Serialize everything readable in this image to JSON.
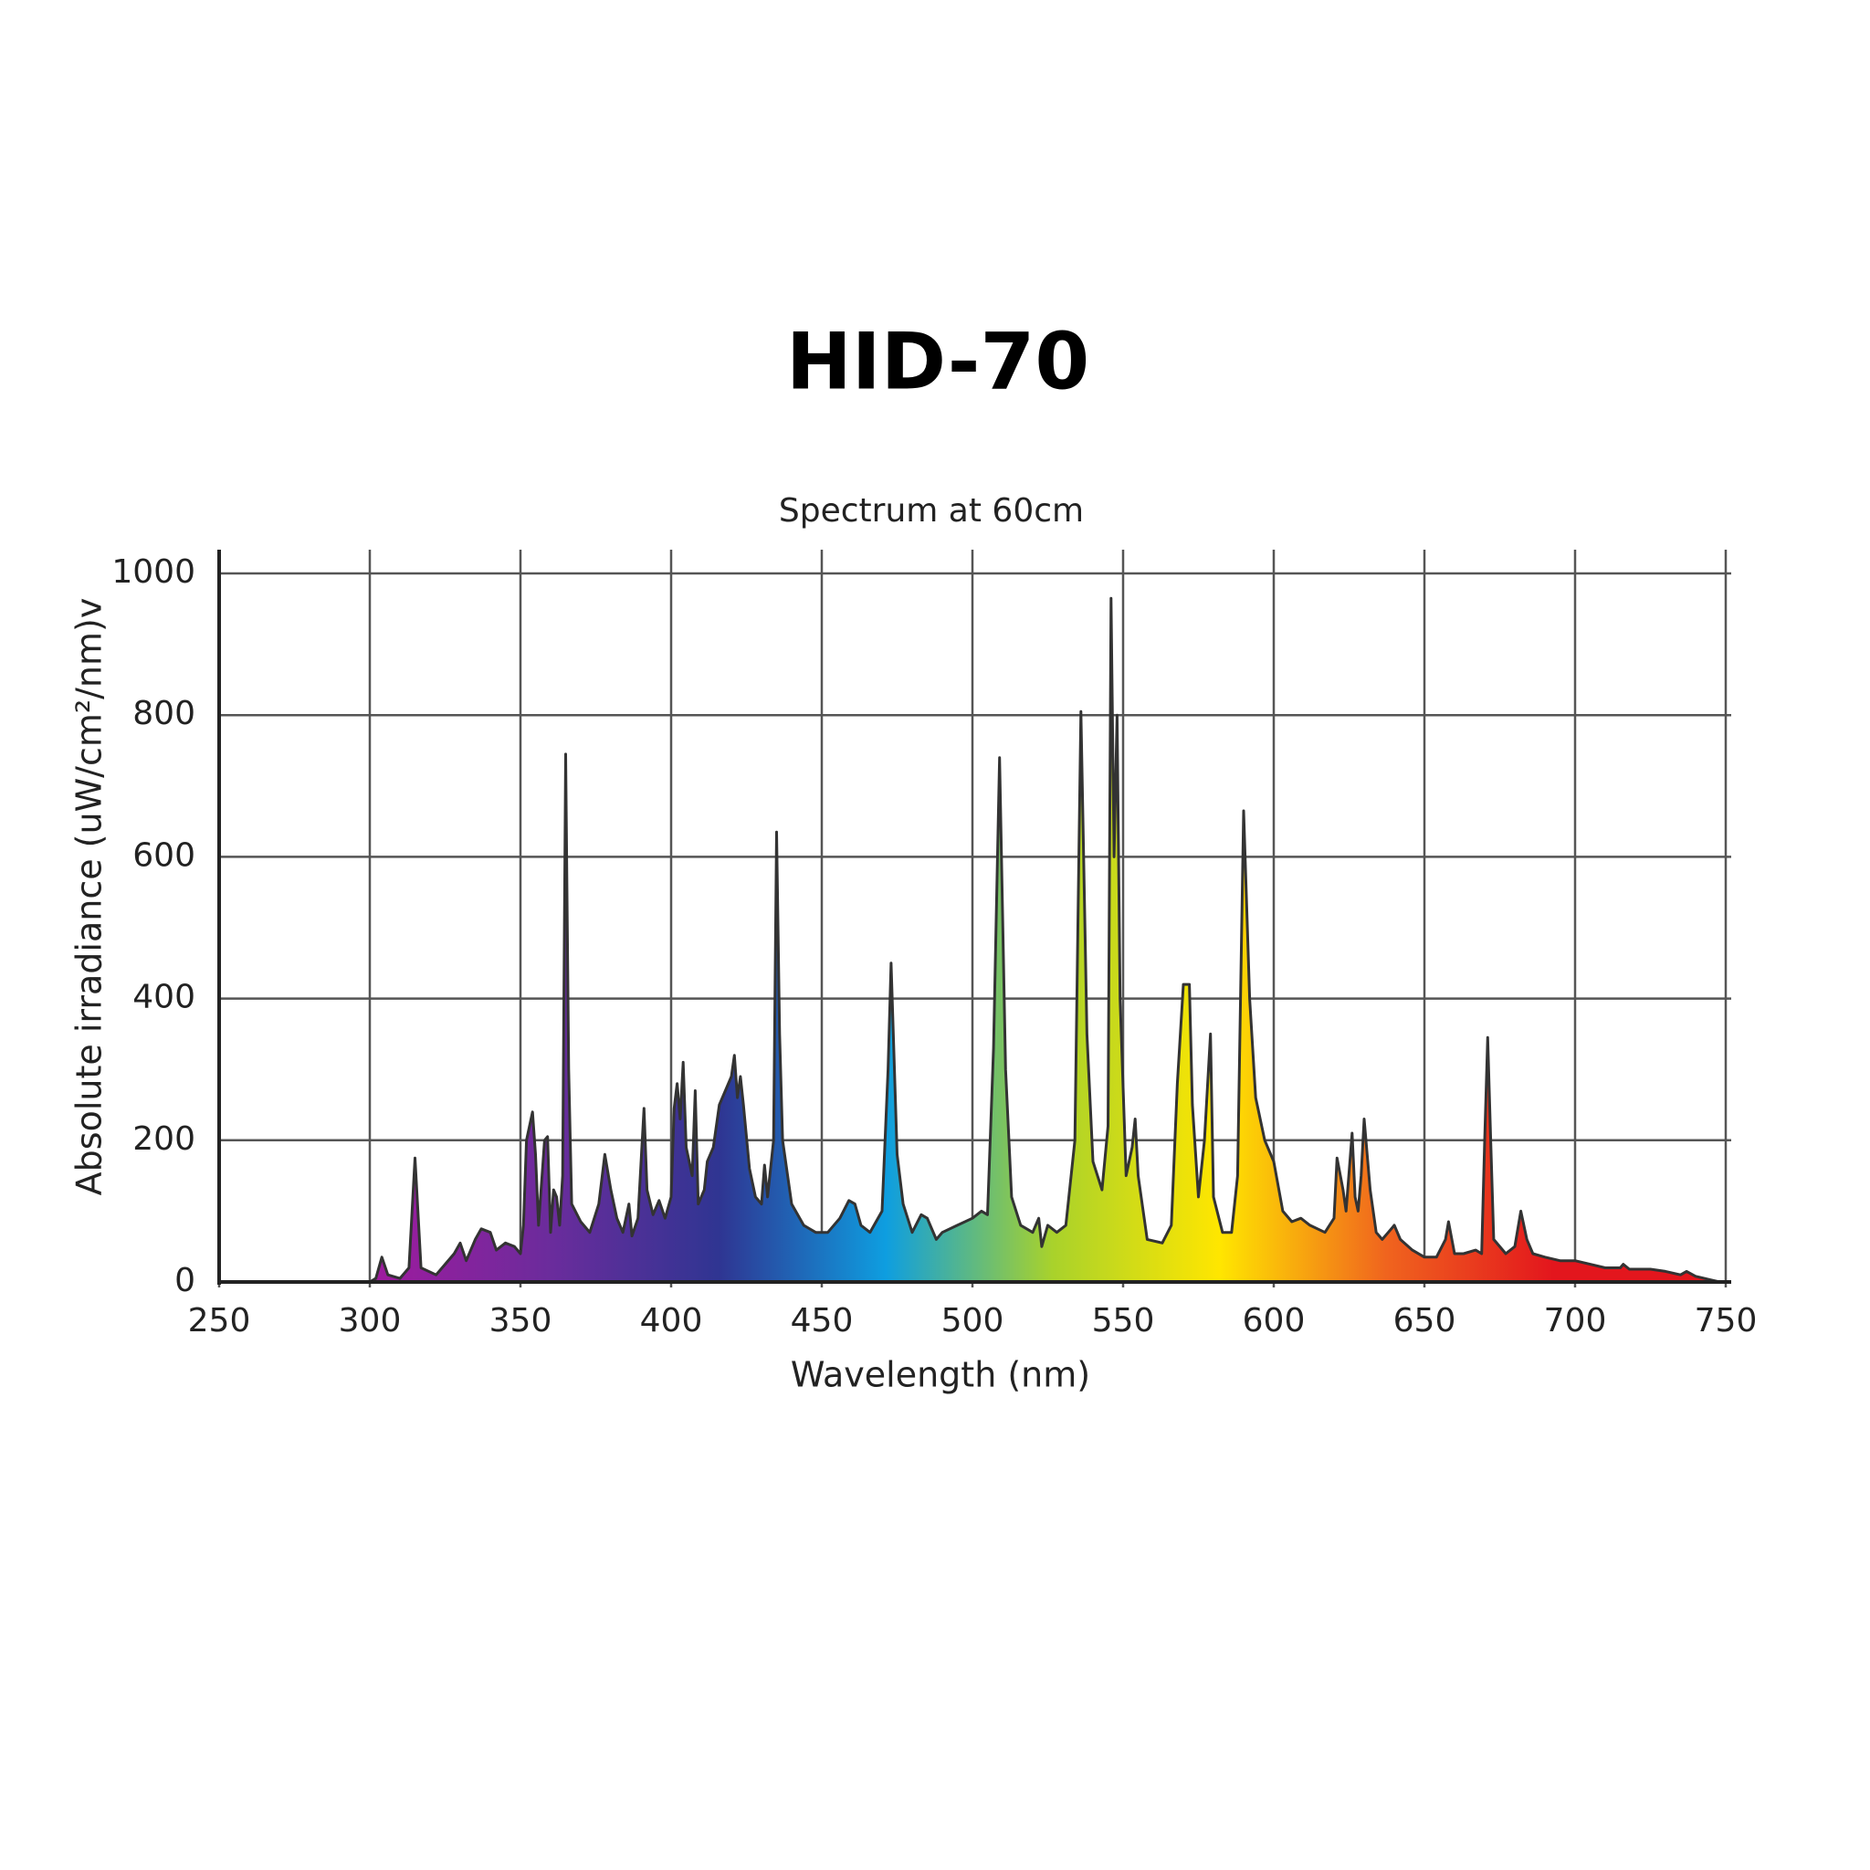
{
  "chart_data": {
    "type": "area",
    "title": "HID-70",
    "subtitle": "Spectrum at 60cm",
    "x_label": "Wavelength (nm)",
    "y_label": "Absolute irradiance (uW/cm²/nm)v",
    "xlim": [
      250,
      750
    ],
    "ylim": [
      0,
      1000
    ],
    "xticks": [
      250,
      300,
      350,
      400,
      450,
      500,
      550,
      600,
      650,
      700,
      750
    ],
    "yticks": [
      0,
      200,
      400,
      600,
      800,
      1000
    ],
    "grid": true,
    "line_color": "#333333",
    "fill_colors": [
      "#b0208f",
      "#9c1c9e",
      "#6a2c9c",
      "#2f3592",
      "#0e9ee0",
      "#a9d22b",
      "#ffe600",
      "#f0641e",
      "#e3161d",
      "#e3161d"
    ],
    "x": [
      250,
      300,
      302,
      304,
      306,
      310,
      313,
      315,
      317,
      322,
      325,
      328,
      330,
      332,
      335,
      337,
      340,
      342,
      345,
      348,
      350,
      351,
      352,
      354,
      355,
      356,
      358,
      359,
      360,
      361,
      362,
      363,
      364,
      365,
      366,
      367,
      370,
      373,
      376,
      378,
      380,
      382,
      384,
      386,
      387,
      389,
      391,
      392,
      394,
      396,
      398,
      400,
      401,
      402,
      403,
      404,
      405,
      407,
      408,
      409,
      411,
      412,
      414,
      416,
      418,
      420,
      421,
      422,
      423,
      424,
      426,
      428,
      430,
      431,
      432,
      434,
      435,
      436,
      437,
      440,
      444,
      448,
      452,
      456,
      459,
      461,
      463,
      466,
      470,
      472,
      473,
      475,
      477,
      480,
      483,
      485,
      488,
      490,
      495,
      500,
      503,
      505,
      507,
      509,
      511,
      513,
      516,
      520,
      522,
      523,
      525,
      528,
      531,
      534,
      536,
      538,
      540,
      543,
      545,
      546,
      547,
      548,
      549,
      551,
      553,
      554,
      555,
      558,
      563,
      566,
      568,
      570,
      572,
      573,
      575,
      577,
      579,
      580,
      583,
      586,
      588,
      590,
      592,
      594,
      597,
      600,
      603,
      606,
      609,
      612,
      617,
      620,
      621,
      623,
      624,
      626,
      627,
      628,
      629,
      630,
      632,
      634,
      636,
      638,
      640,
      642,
      646,
      650,
      654,
      657,
      658,
      660,
      663,
      667,
      669,
      670,
      671,
      672,
      673,
      677,
      680,
      682,
      684,
      686,
      690,
      695,
      700,
      705,
      710,
      715,
      716,
      718,
      725,
      730,
      735,
      737,
      740,
      745,
      748
    ],
    "values": [
      0,
      0,
      5,
      35,
      10,
      5,
      20,
      175,
      20,
      10,
      25,
      40,
      55,
      30,
      60,
      75,
      70,
      45,
      55,
      50,
      40,
      80,
      200,
      240,
      180,
      80,
      200,
      205,
      70,
      130,
      120,
      80,
      150,
      745,
      300,
      110,
      85,
      70,
      110,
      180,
      130,
      90,
      70,
      110,
      65,
      90,
      245,
      130,
      95,
      115,
      90,
      120,
      245,
      280,
      230,
      310,
      190,
      150,
      270,
      110,
      130,
      170,
      190,
      250,
      270,
      290,
      320,
      260,
      290,
      250,
      160,
      120,
      110,
      165,
      120,
      200,
      635,
      350,
      200,
      110,
      80,
      70,
      70,
      90,
      115,
      110,
      80,
      70,
      100,
      300,
      450,
      180,
      110,
      70,
      95,
      90,
      60,
      70,
      80,
      90,
      100,
      95,
      330,
      740,
      300,
      120,
      80,
      70,
      90,
      50,
      80,
      70,
      80,
      200,
      805,
      350,
      170,
      130,
      220,
      965,
      600,
      800,
      400,
      150,
      190,
      230,
      150,
      60,
      55,
      80,
      280,
      420,
      420,
      250,
      120,
      200,
      350,
      120,
      70,
      70,
      150,
      665,
      400,
      260,
      200,
      170,
      100,
      85,
      90,
      80,
      70,
      90,
      175,
      130,
      100,
      210,
      120,
      100,
      150,
      230,
      130,
      70,
      60,
      70,
      80,
      60,
      45,
      35,
      35,
      60,
      85,
      40,
      40,
      45,
      40,
      200,
      345,
      200,
      60,
      40,
      50,
      100,
      60,
      40,
      35,
      30,
      30,
      25,
      20,
      20,
      25,
      18,
      18,
      15,
      10,
      15,
      8,
      3,
      0
    ]
  }
}
